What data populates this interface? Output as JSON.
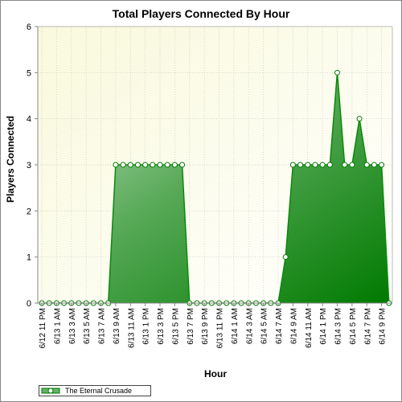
{
  "chart_data": {
    "type": "area",
    "title": "Total Players Connected By Hour",
    "xlabel": "Hour",
    "ylabel": "Players Connected",
    "ylim": [
      0,
      6
    ],
    "yticks": [
      0,
      1,
      2,
      3,
      4,
      5,
      6
    ],
    "grid": true,
    "legend_position": "bottom-left",
    "x_tick_labels": [
      "6/12 11 PM",
      "6/13 1 AM",
      "6/13 3 AM",
      "6/13 5 AM",
      "6/13 7 AM",
      "6/13 9 AM",
      "6/13 11 AM",
      "6/13 1 PM",
      "6/13 3 PM",
      "6/13 5 PM",
      "6/13 7 PM",
      "6/13 9 PM",
      "6/13 11 PM",
      "6/14 1 AM",
      "6/14 3 AM",
      "6/14 5 AM",
      "6/14 7 AM",
      "6/14 9 AM",
      "6/14 11 AM",
      "6/14 1 PM",
      "6/14 3 PM",
      "6/14 5 PM",
      "6/14 7 PM",
      "6/14 9 PM"
    ],
    "series": [
      {
        "name": "The Eternal Crusade",
        "color": "#2e8b2e",
        "values": [
          0,
          0,
          0,
          0,
          0,
          0,
          0,
          0,
          0,
          0,
          3,
          3,
          3,
          3,
          3,
          3,
          3,
          3,
          3,
          3,
          0,
          0,
          0,
          0,
          0,
          0,
          0,
          0,
          0,
          0,
          0,
          0,
          0,
          1,
          3,
          3,
          3,
          3,
          3,
          3,
          5,
          3,
          3,
          4,
          3,
          3,
          3,
          0
        ]
      }
    ]
  },
  "legend": {
    "label": "The Eternal Crusade"
  }
}
